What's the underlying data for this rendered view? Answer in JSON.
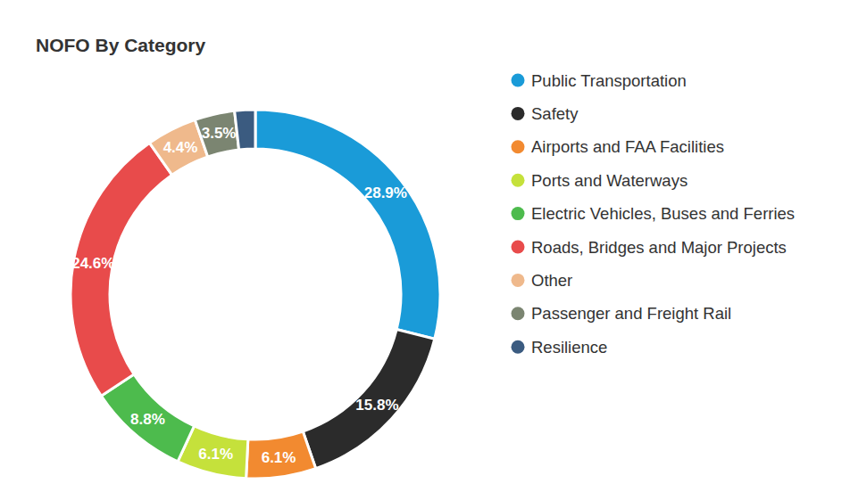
{
  "chart_data": {
    "type": "donut",
    "title": "NOFO By Category",
    "categories": [
      "Public Transportation",
      "Safety",
      "Airports and FAA Facilities",
      "Ports and Waterways",
      "Electric Vehicles, Buses and Ferries",
      "Roads, Bridges and Major Projects",
      "Other",
      "Passenger and Freight Rail",
      "Resilience"
    ],
    "values": [
      28.9,
      15.8,
      6.1,
      6.1,
      8.8,
      24.6,
      4.4,
      3.5,
      1.8
    ],
    "value_labels": [
      "28.9%",
      "15.8%",
      "6.1%",
      "6.1%",
      "8.8%",
      "24.6%",
      "4.4%",
      "3.5%",
      null
    ],
    "colors": [
      "#1a9bd8",
      "#2b2b2b",
      "#f28a30",
      "#c5e13b",
      "#4dbb4d",
      "#e84b4b",
      "#efb98c",
      "#7b8571",
      "#3b5b80"
    ],
    "data_labels": true,
    "legend": "right"
  }
}
